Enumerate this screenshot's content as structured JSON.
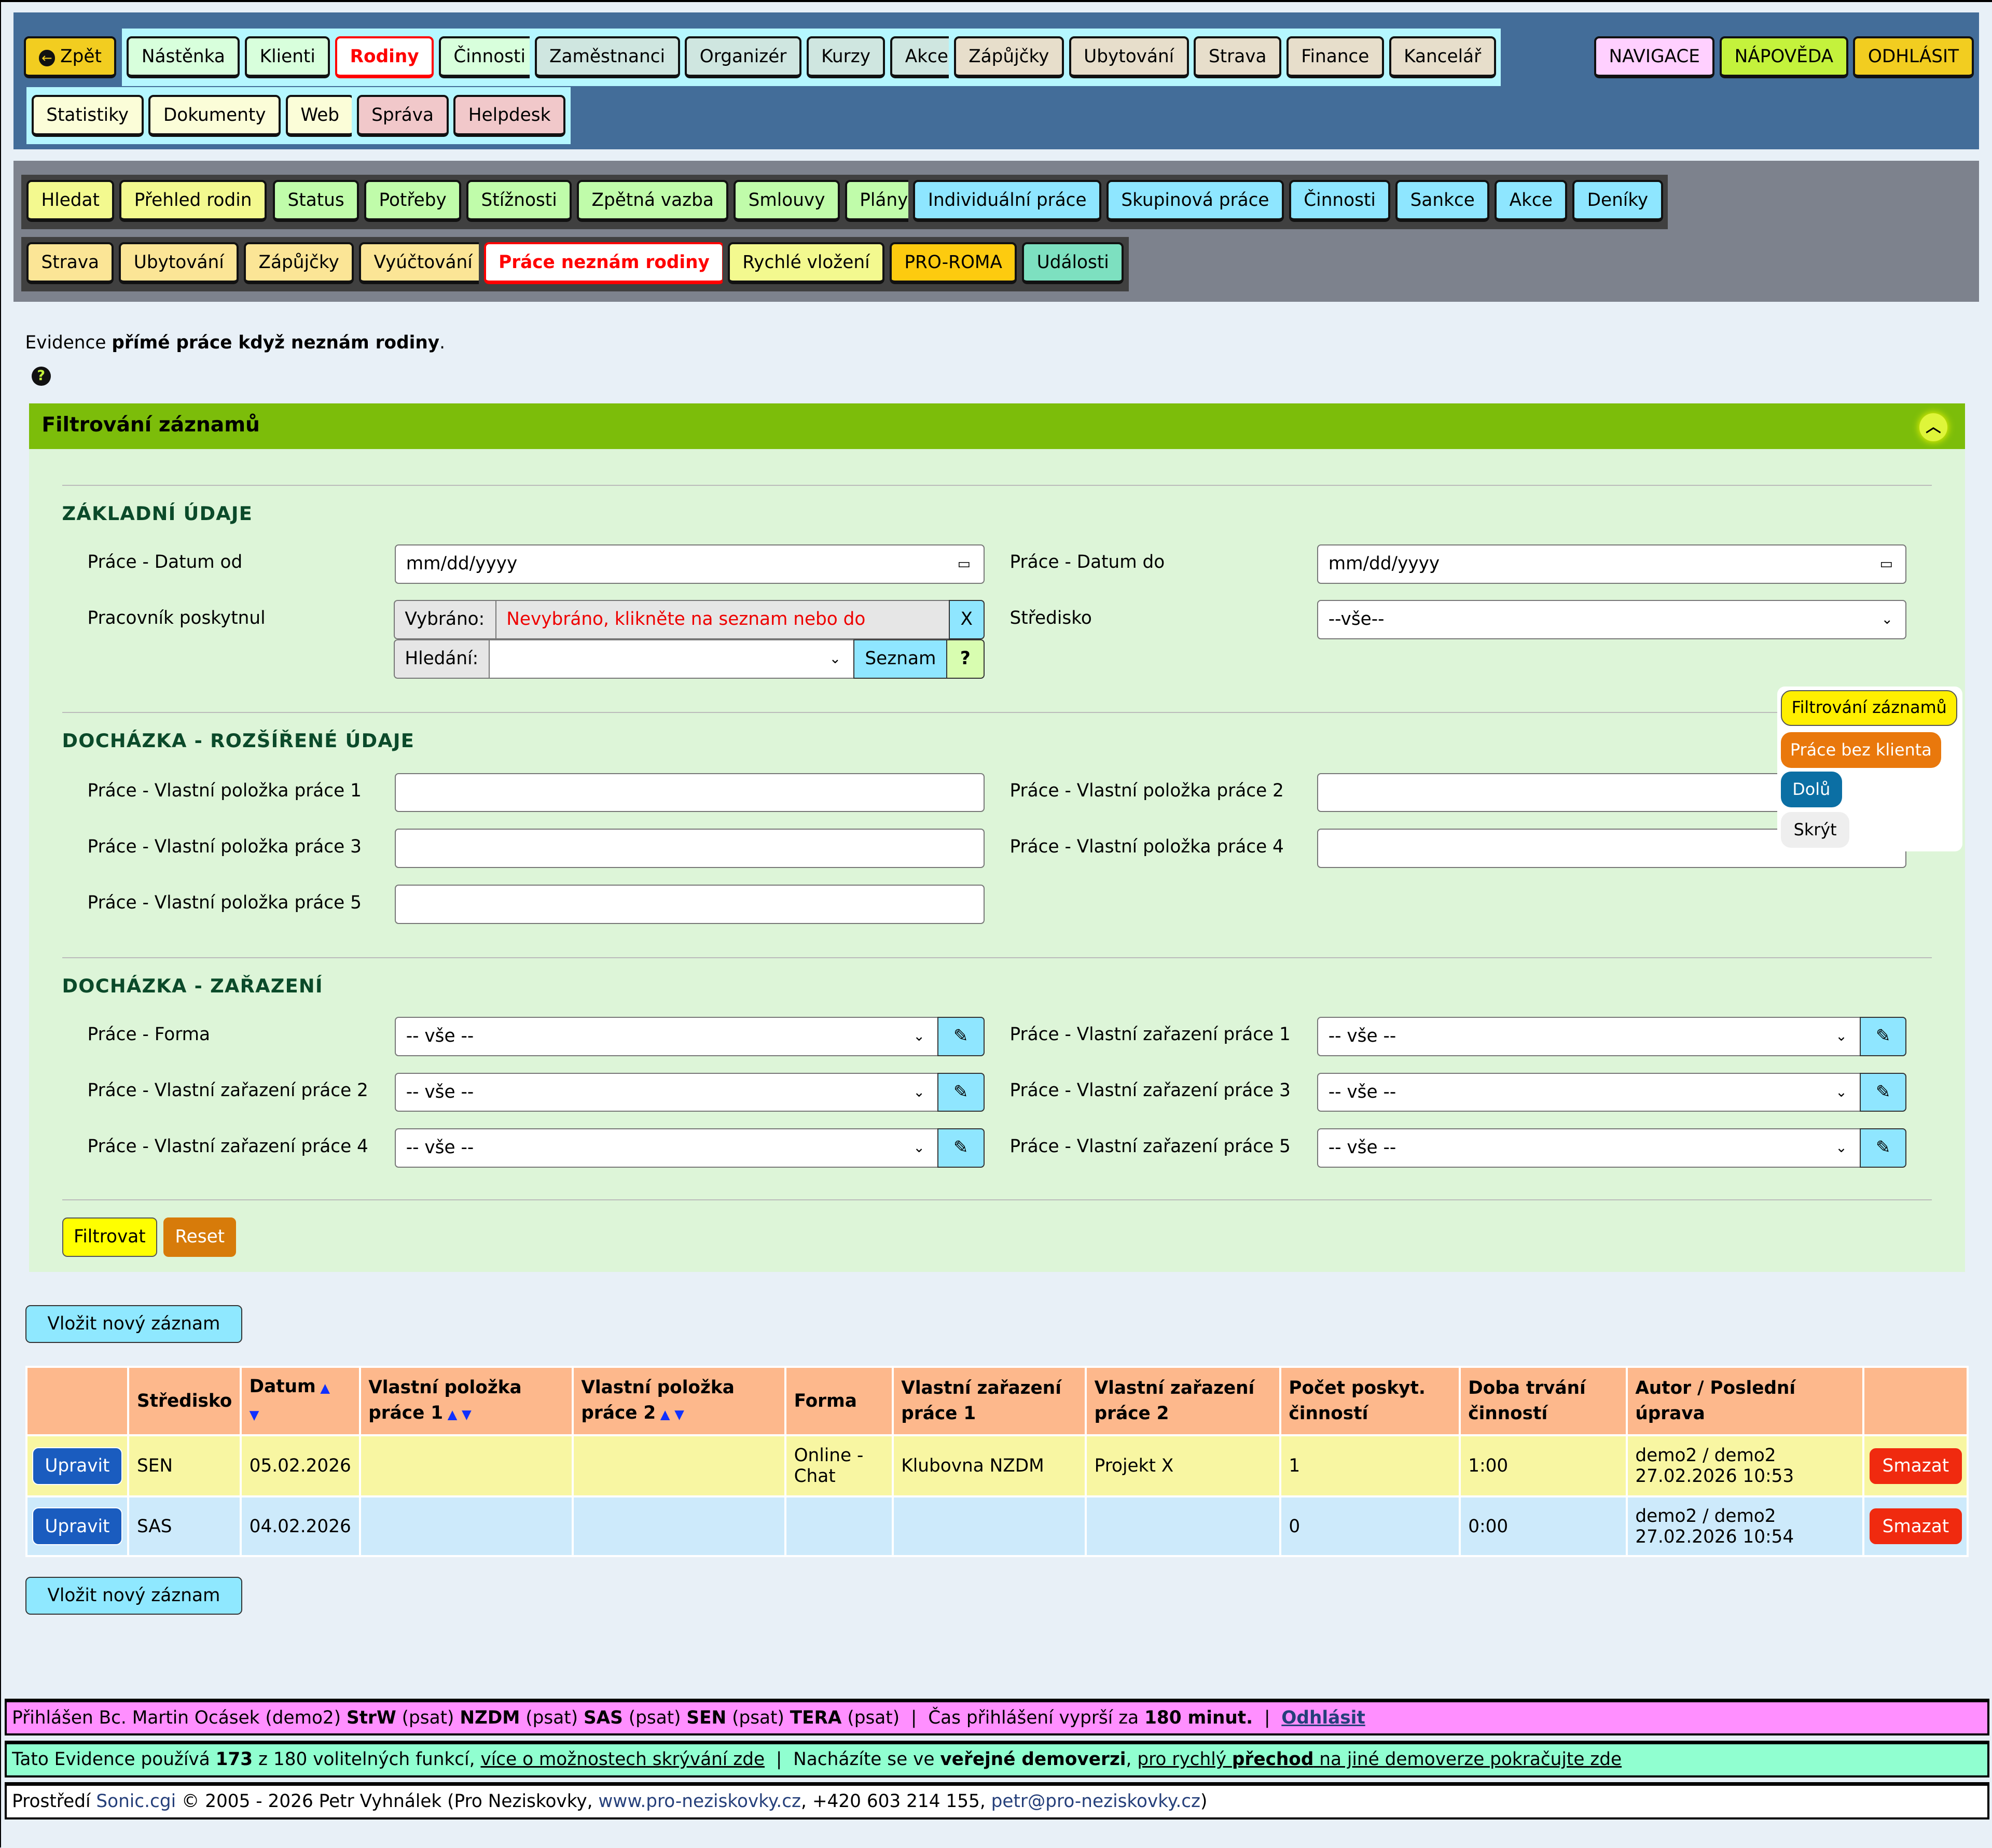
{
  "topnav": {
    "groups": [
      {
        "bg": "",
        "items": [
          {
            "label": "Zpět",
            "color": "#f2cd20",
            "icon": "arrow-left-circle-icon"
          }
        ]
      },
      {
        "bg": "#b5f7ff",
        "items": [
          {
            "label": "Nástěnka",
            "color": "#d8ffdc"
          },
          {
            "label": "Klienti",
            "color": "#d8ffdc"
          },
          {
            "label": "Rodiny",
            "color": "#d8ffdc",
            "selected": true
          },
          {
            "label": "Činnosti",
            "color": "#d8ffdc"
          }
        ]
      },
      {
        "bg": "#b5f7ff",
        "items": [
          {
            "label": "Zaměstnanci",
            "color": "#cfe6e0"
          },
          {
            "label": "Organizér",
            "color": "#cfe6e0"
          },
          {
            "label": "Kurzy",
            "color": "#cfe6e0"
          },
          {
            "label": "Akce",
            "color": "#cfe6e0"
          }
        ]
      },
      {
        "bg": "#b5f7ff",
        "items": [
          {
            "label": "Zápůjčky",
            "color": "#e7decb"
          },
          {
            "label": "Ubytování",
            "color": "#e7decb"
          },
          {
            "label": "Strava",
            "color": "#e7decb"
          },
          {
            "label": "Finance",
            "color": "#e7decb"
          },
          {
            "label": "Kancelář",
            "color": "#e7decb"
          }
        ]
      },
      {
        "bg": "#b5f7ff",
        "items": [
          {
            "label": "Statistiky",
            "color": "#fbfdd8"
          },
          {
            "label": "Dokumenty",
            "color": "#fbfdd8"
          },
          {
            "label": "Web",
            "color": "#fbfdd8"
          }
        ]
      },
      {
        "bg": "#b5f7ff",
        "items": [
          {
            "label": "Správa",
            "color": "#f1c8ca"
          },
          {
            "label": "Helpdesk",
            "color": "#f1c8ca"
          }
        ]
      },
      {
        "bg": "",
        "items": [
          {
            "label": "NAVIGACE",
            "color": "#ffd0ff"
          },
          {
            "label": "NÁPOVĚDA",
            "color": "#c4f23c"
          },
          {
            "label": "ODHLÁSIT",
            "color": "#f2cd20"
          }
        ]
      }
    ]
  },
  "subnav": {
    "groups": [
      {
        "items": [
          {
            "label": "Hledat",
            "color": "#f3f98f"
          },
          {
            "label": "Přehled rodin",
            "color": "#f3f98f"
          }
        ]
      },
      {
        "items": [
          {
            "label": "Status",
            "color": "#c0fcaa"
          },
          {
            "label": "Potřeby",
            "color": "#c0fcaa"
          },
          {
            "label": "Stížnosti",
            "color": "#c0fcaa"
          },
          {
            "label": "Zpětná vazba",
            "color": "#c0fcaa"
          },
          {
            "label": "Smlouvy",
            "color": "#c0fcaa"
          },
          {
            "label": "Plány",
            "color": "#c0fcaa"
          }
        ]
      },
      {
        "items": [
          {
            "label": "Individuální práce",
            "color": "#8ee6ff"
          },
          {
            "label": "Skupinová práce",
            "color": "#8ee6ff"
          },
          {
            "label": "Činnosti",
            "color": "#8ee6ff"
          },
          {
            "label": "Sankce",
            "color": "#8ee6ff"
          },
          {
            "label": "Akce",
            "color": "#8ee6ff"
          },
          {
            "label": "Deníky",
            "color": "#8ee6ff"
          }
        ]
      },
      {
        "items": [
          {
            "label": "Strava",
            "color": "#fbe596"
          },
          {
            "label": "Ubytování",
            "color": "#fbe596"
          },
          {
            "label": "Zápůjčky",
            "color": "#fbe596"
          },
          {
            "label": "Vyúčtování",
            "color": "#fbe596"
          }
        ]
      },
      {
        "items": [
          {
            "label": "Práce neznám rodiny",
            "color": "#fff",
            "selected": true
          }
        ]
      },
      {
        "items": [
          {
            "label": "Rychlé vložení",
            "color": "#f3f98f"
          },
          {
            "label": "PRO-ROMA",
            "color": "#fdcb0f"
          },
          {
            "label": "Události",
            "color": "#7de0c0"
          }
        ]
      }
    ]
  },
  "intro": {
    "prefix": "Evidence ",
    "bold": "přímé práce když neznám rodiny",
    "suffix": "."
  },
  "filter": {
    "title": "Filtrování záznamů",
    "sec1": "ZÁKLADNÍ ÚDAJE",
    "sec2": "DOCHÁZKA - ROZŠÍŘENÉ ÚDAJE",
    "sec3": "DOCHÁZKA - ZAŘAZENÍ",
    "date_from_label": "Práce - Datum od",
    "date_to_label": "Práce - Datum do",
    "date_placeholder": "mm/dd/yyyy",
    "worker_label": "Pracovník poskytnul",
    "selected_label": "Vybráno:",
    "selected_value": "Nevybráno, klikněte na seznam nebo do hledání.",
    "clear": "X",
    "search_label": "Hledání:",
    "list_btn": "Seznam",
    "help_btn": "?",
    "center_label": "Středisko",
    "center_value": "--vše--",
    "custom": [
      "Práce - Vlastní položka práce 1",
      "Práce - Vlastní položka práce 2",
      "Práce - Vlastní položka práce 3",
      "Práce - Vlastní položka práce 4",
      "Práce - Vlastní položka práce 5"
    ],
    "class": [
      "Práce - Forma",
      "Práce - Vlastní zařazení práce 1",
      "Práce - Vlastní zařazení práce 2",
      "Práce - Vlastní zařazení práce 3",
      "Práce - Vlastní zařazení práce 4",
      "Práce - Vlastní zařazení práce 5"
    ],
    "all": "-- vše --",
    "submit": "Filtrovat",
    "reset": "Reset"
  },
  "floatmenu": {
    "filter": "Filtrování záznamů",
    "nocl": "Práce bez klienta",
    "down": "Dolů",
    "hide": "Skrýt"
  },
  "new_record": "Vložit nový záznam",
  "table": {
    "headers": [
      "",
      "Středisko",
      "Datum",
      "Vlastní položka práce 1",
      "Vlastní položka práce 2",
      "Forma",
      "Vlastní zařazení práce 1",
      "Vlastní zařazení práce 2",
      "Počet poskyt. činností",
      "Doba trvání činností",
      "Autor / Poslední úprava",
      ""
    ],
    "edit": "Upravit",
    "delete": "Smazat",
    "rows": [
      [
        "SEN",
        "05.02.2026",
        "",
        "",
        "Online - Chat",
        "Klubovna NZDM",
        "Projekt X",
        "1",
        "1:00",
        "demo2 / demo2 27.02.2026 10:53"
      ],
      [
        "SAS",
        "04.02.2026",
        "",
        "",
        "",
        "",
        "",
        "0",
        "0:00",
        "demo2 / demo2 27.02.2026 10:54"
      ]
    ]
  },
  "footer": {
    "login": {
      "a": "Přihlášen Bc. Martin Ocásek (demo2) ",
      "b1": "StrW",
      "c1": " (psat) ",
      "b2": "NZDM",
      "c2": " (psat) ",
      "b3": "SAS",
      "c3": " (psat) ",
      "b4": "SEN",
      "c4": " (psat) ",
      "b5": "TERA",
      "c5": " (psat)  |  Čas přihlášení vyprší za ",
      "b6": "180 minut.",
      "c6": "  |  ",
      "logout": "Odhlásit"
    },
    "info": {
      "a": "Tato Evidence používá ",
      "b1": "173",
      "c1": " z 180 volitelných funkcí, ",
      "l1": "více o možnostech skrývání zde",
      "c2": "  |  Nacházíte se ve ",
      "b2": "veřejné demoverzi",
      "c3": ", ",
      "l2a": "pro rychlý ",
      "l2b": "přechod",
      "l2c": " na jiné demoverze pokračujte zde"
    },
    "copy": {
      "a": "Prostředí ",
      "l1": "Sonic.cgi",
      "b": " © 2005 - 2026 Petr Vyhnálek (Pro Neziskovky, ",
      "l2": "www.pro-neziskovky.cz",
      "c": ", +420 603 214 155, ",
      "l3": "petr@pro-neziskovky.cz",
      "d": ")"
    }
  }
}
